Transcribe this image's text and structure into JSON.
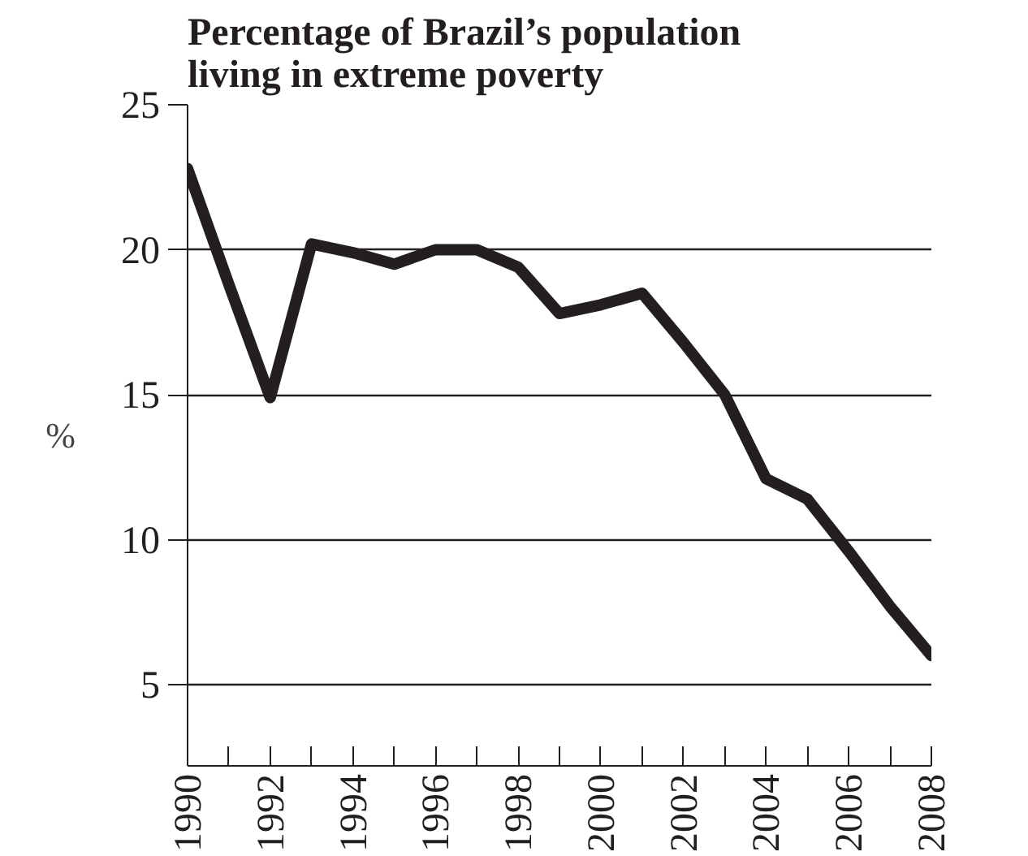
{
  "chart_data": {
    "type": "line",
    "title": "Percentage of Brazil’s population\nliving in extreme poverty",
    "ylabel": "%",
    "x": [
      1990,
      1991,
      1992,
      1993,
      1994,
      1995,
      1996,
      1997,
      1998,
      1999,
      2000,
      2001,
      2002,
      2003,
      2004,
      2005,
      2006,
      2007,
      2008
    ],
    "series": [
      {
        "color": "#231f20",
        "values": [
          22.8,
          18.8,
          14.9,
          20.2,
          19.9,
          19.5,
          20.0,
          20.0,
          19.4,
          17.8,
          18.1,
          18.5,
          16.8,
          15.0,
          12.1,
          11.4,
          9.6,
          7.7,
          6.0
        ]
      }
    ],
    "xlim": [
      1990,
      2008
    ],
    "ylim": [
      2.2,
      25
    ],
    "xticks": [
      1990,
      {
        "value": 1991,
        "label": null
      },
      1992,
      {
        "value": 1993,
        "label": null
      },
      1994,
      {
        "value": 1995,
        "label": null
      },
      1996,
      {
        "value": 1997,
        "label": null
      },
      1998,
      {
        "value": 1999,
        "label": null
      },
      2000,
      {
        "value": 2001,
        "label": null
      },
      2002,
      {
        "value": 2003,
        "label": null
      },
      2004,
      {
        "value": 2005,
        "label": null
      },
      2006,
      {
        "value": 2007,
        "label": null
      },
      2008
    ],
    "yticks": [
      5,
      10,
      15,
      20,
      25
    ],
    "grid": "y",
    "marker": "none",
    "line_style": "solid"
  }
}
